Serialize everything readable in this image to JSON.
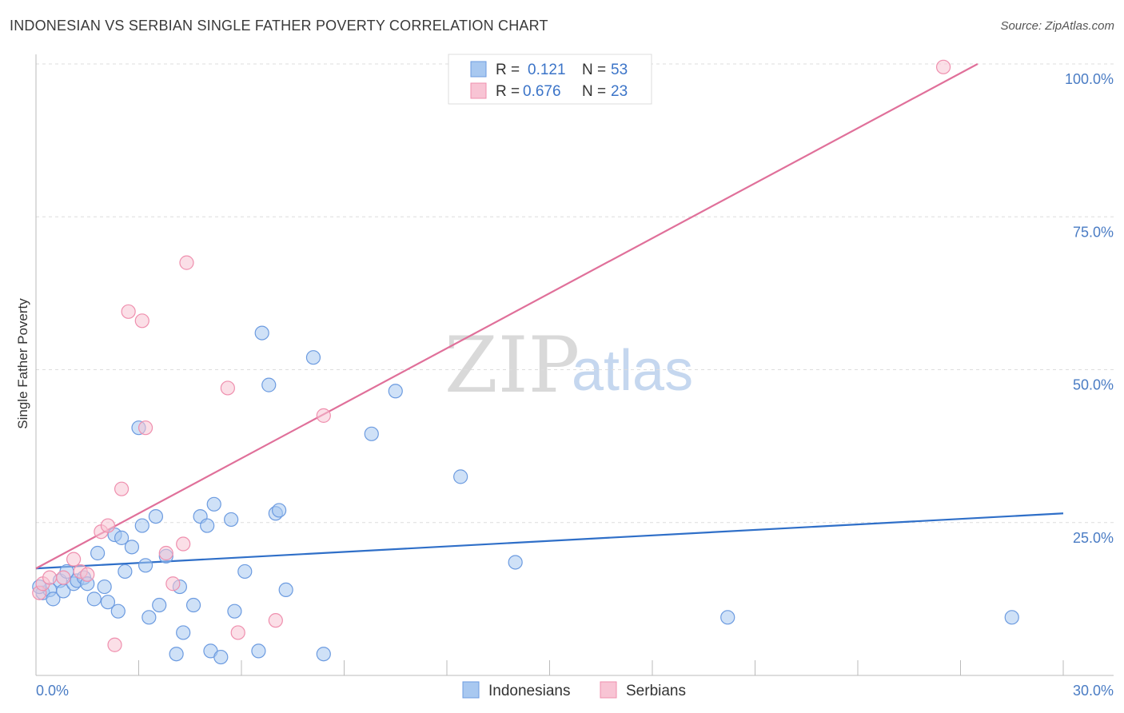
{
  "header": {
    "title": "INDONESIAN VS SERBIAN SINGLE FATHER POVERTY CORRELATION CHART",
    "source": "Source: ZipAtlas.com"
  },
  "watermark": {
    "zip": "ZIP",
    "atlas": "atlas"
  },
  "legend_top": [
    {
      "r_label": "R =",
      "r_value": "0.121",
      "n_label": "N =",
      "n_value": "53",
      "color": "#a8c8f0",
      "stroke": "#6c9be0"
    },
    {
      "r_label": "R =",
      "r_value": "0.676",
      "n_label": "N =",
      "n_value": "23",
      "color": "#f8c4d4",
      "stroke": "#ef8fae"
    }
  ],
  "legend_bottom": [
    {
      "label": "Indonesians",
      "color": "#a8c8f0",
      "stroke": "#6c9be0"
    },
    {
      "label": "Serbians",
      "color": "#f8c4d4",
      "stroke": "#ef8fae"
    }
  ],
  "chart_data": {
    "type": "scatter",
    "title": "INDONESIAN VS SERBIAN SINGLE FATHER POVERTY CORRELATION CHART",
    "xlabel": "",
    "ylabel": "Single Father Poverty",
    "xlim": [
      0,
      30
    ],
    "ylim": [
      0,
      100
    ],
    "x_tick_labels": [
      "0.0%",
      "30.0%"
    ],
    "y_tick_labels": [
      {
        "value": 100,
        "label": "100.0%"
      },
      {
        "value": 75,
        "label": "75.0%"
      },
      {
        "value": 50,
        "label": "50.0%"
      },
      {
        "value": 25,
        "label": "25.0%"
      }
    ],
    "series": [
      {
        "name": "Indonesians",
        "color": "#6c9be0",
        "fill": "#a8c8f0",
        "line_color": "#2f6fc8",
        "trend": [
          [
            0,
            17.5
          ],
          [
            30,
            26.5
          ]
        ],
        "points": [
          [
            0.2,
            13.5
          ],
          [
            0.4,
            14.0
          ],
          [
            0.5,
            12.5
          ],
          [
            0.7,
            15.5
          ],
          [
            0.8,
            13.8
          ],
          [
            0.9,
            17.0
          ],
          [
            1.1,
            15.0
          ],
          [
            1.2,
            15.5
          ],
          [
            1.4,
            16.0
          ],
          [
            1.5,
            15.0
          ],
          [
            1.7,
            12.5
          ],
          [
            1.8,
            20.0
          ],
          [
            2.0,
            14.5
          ],
          [
            2.1,
            12.0
          ],
          [
            2.3,
            23.0
          ],
          [
            2.4,
            10.5
          ],
          [
            2.5,
            22.5
          ],
          [
            2.6,
            17.0
          ],
          [
            2.8,
            21.0
          ],
          [
            3.1,
            24.5
          ],
          [
            3.2,
            18.0
          ],
          [
            3.3,
            9.5
          ],
          [
            3.5,
            26.0
          ],
          [
            3.6,
            11.5
          ],
          [
            3.8,
            19.5
          ],
          [
            4.1,
            3.5
          ],
          [
            4.2,
            14.5
          ],
          [
            4.3,
            7.0
          ],
          [
            4.6,
            11.5
          ],
          [
            4.8,
            26.0
          ],
          [
            5.0,
            24.5
          ],
          [
            5.1,
            4.0
          ],
          [
            5.2,
            28.0
          ],
          [
            5.4,
            3.0
          ],
          [
            5.7,
            25.5
          ],
          [
            5.8,
            10.5
          ],
          [
            6.1,
            17.0
          ],
          [
            6.5,
            4.0
          ],
          [
            6.6,
            56.0
          ],
          [
            6.8,
            47.5
          ],
          [
            7.0,
            26.5
          ],
          [
            7.1,
            27.0
          ],
          [
            7.3,
            14.0
          ],
          [
            8.1,
            52.0
          ],
          [
            8.4,
            3.5
          ],
          [
            9.8,
            39.5
          ],
          [
            10.5,
            46.5
          ],
          [
            12.4,
            32.5
          ],
          [
            14.0,
            18.5
          ],
          [
            20.2,
            9.5
          ],
          [
            28.5,
            9.5
          ],
          [
            0.1,
            14.5
          ],
          [
            3.0,
            40.5
          ]
        ]
      },
      {
        "name": "Serbians",
        "color": "#ef8fae",
        "fill": "#f8c4d4",
        "line_color": "#e0709a",
        "trend": [
          [
            0,
            17.5
          ],
          [
            27.5,
            100.0
          ]
        ],
        "points": [
          [
            0.1,
            13.5
          ],
          [
            0.2,
            15.0
          ],
          [
            0.4,
            16.0
          ],
          [
            0.8,
            16.0
          ],
          [
            1.1,
            19.0
          ],
          [
            1.3,
            17.0
          ],
          [
            1.5,
            16.5
          ],
          [
            1.9,
            23.5
          ],
          [
            2.1,
            24.5
          ],
          [
            2.3,
            5.0
          ],
          [
            2.5,
            30.5
          ],
          [
            2.7,
            59.5
          ],
          [
            3.1,
            58.0
          ],
          [
            3.2,
            40.5
          ],
          [
            3.8,
            20.0
          ],
          [
            4.0,
            15.0
          ],
          [
            4.3,
            21.5
          ],
          [
            4.4,
            67.5
          ],
          [
            5.6,
            47.0
          ],
          [
            5.9,
            7.0
          ],
          [
            7.0,
            9.0
          ],
          [
            8.4,
            42.5
          ],
          [
            26.5,
            99.5
          ]
        ]
      }
    ]
  }
}
